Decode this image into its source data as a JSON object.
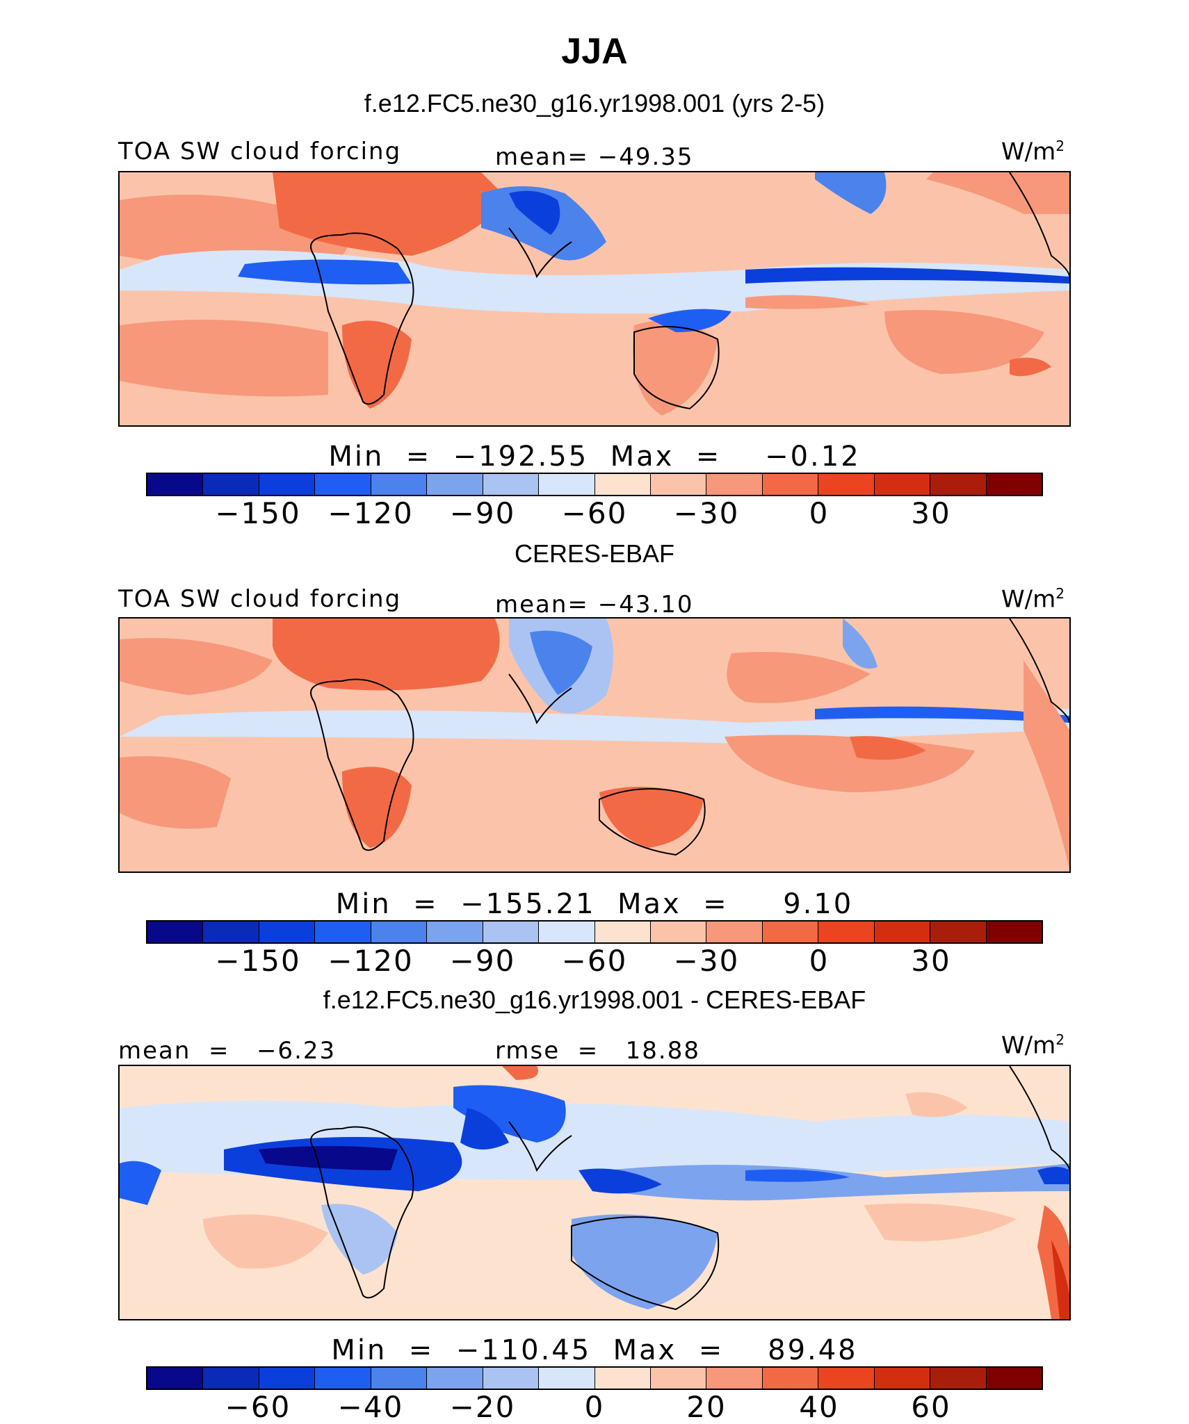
{
  "title": "JJA",
  "palette": [
    "#08088a",
    "#0a2ab8",
    "#0b3fdc",
    "#1f5ef2",
    "#4b82ec",
    "#7ca3ee",
    "#aac3f2",
    "#d7e6fa",
    "#fde3cf",
    "#fbc4aa",
    "#f7987a",
    "#f26a45",
    "#ea4420",
    "#d42e10",
    "#a81e0a",
    "#800000"
  ],
  "panels": [
    {
      "case_title": "f.e12.FC5.ne30_g16.yr1998.001 (yrs 2-5)",
      "left_label": "TOA SW cloud forcing",
      "center_label": "mean= −49.35",
      "units": "W/m",
      "units_sup": "2",
      "minmax": "Min  =  −192.55  Max  =    −0.12",
      "ticks": [
        "−150",
        "−120",
        "−90",
        "−60",
        "−30",
        "0",
        "30"
      ]
    },
    {
      "case_title": "CERES-EBAF",
      "left_label": "TOA SW cloud forcing",
      "center_label": "mean= −43.10",
      "units": "W/m",
      "units_sup": "2",
      "minmax": "Min  =  −155.21  Max  =     9.10",
      "ticks": [
        "−150",
        "−120",
        "−90",
        "−60",
        "−30",
        "0",
        "30"
      ]
    },
    {
      "case_title": "f.e12.FC5.ne30_g16.yr1998.001 - CERES-EBAF",
      "left_label": "mean  =   −6.23",
      "center_label": "rmse  =   18.88",
      "units": "W/m",
      "units_sup": "2",
      "minmax": "Min  =  −110.45  Max  =    89.48",
      "ticks": [
        "−60",
        "−40",
        "−20",
        "0",
        "20",
        "40",
        "60"
      ]
    }
  ]
}
